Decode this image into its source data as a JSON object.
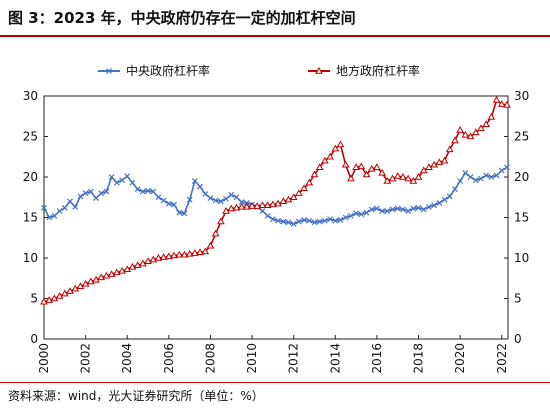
{
  "figure": {
    "title": "图 3：2023 年，中央政府仍存在一定的加杠杆空间",
    "source": "资料来源：wind，光大证券研究所（单位：%）"
  },
  "chart_data": {
    "type": "line",
    "title": "",
    "xlabel": "",
    "ylabel": "",
    "xlim": [
      2000,
      2022.3
    ],
    "ylim": [
      0,
      30
    ],
    "y_ticks": [
      0,
      5,
      10,
      15,
      20,
      25,
      30
    ],
    "y_ticks_right": [
      0,
      5,
      10,
      15,
      20,
      25,
      30
    ],
    "x_ticks": [
      "2000",
      "2002",
      "2004",
      "2006",
      "2008",
      "2010",
      "2012",
      "2014",
      "2016",
      "2018",
      "2020",
      "2022"
    ],
    "grid": false,
    "legend_position": "top",
    "series": [
      {
        "name": "中央政府杠杆率",
        "color": "#4472c4",
        "marker": "x",
        "x": [
          2000.0,
          2000.25,
          2000.5,
          2000.75,
          2001.0,
          2001.25,
          2001.5,
          2001.75,
          2002.0,
          2002.25,
          2002.5,
          2002.75,
          2003.0,
          2003.25,
          2003.5,
          2003.75,
          2004.0,
          2004.25,
          2004.5,
          2004.75,
          2005.0,
          2005.25,
          2005.5,
          2005.75,
          2006.0,
          2006.25,
          2006.5,
          2006.75,
          2007.0,
          2007.25,
          2007.5,
          2007.75,
          2008.0,
          2008.25,
          2008.5,
          2008.75,
          2009.0,
          2009.25,
          2009.5,
          2009.75,
          2010.0,
          2010.25,
          2010.5,
          2010.75,
          2011.0,
          2011.25,
          2011.5,
          2011.75,
          2012.0,
          2012.25,
          2012.5,
          2012.75,
          2013.0,
          2013.25,
          2013.5,
          2013.75,
          2014.0,
          2014.25,
          2014.5,
          2014.75,
          2015.0,
          2015.25,
          2015.5,
          2015.75,
          2016.0,
          2016.25,
          2016.5,
          2016.75,
          2017.0,
          2017.25,
          2017.5,
          2017.75,
          2018.0,
          2018.25,
          2018.5,
          2018.75,
          2019.0,
          2019.25,
          2019.5,
          2019.75,
          2020.0,
          2020.25,
          2020.5,
          2020.75,
          2021.0,
          2021.25,
          2021.5,
          2021.75,
          2022.0,
          2022.25
        ],
        "values": [
          16.2,
          15.0,
          15.2,
          15.8,
          16.2,
          17.0,
          16.3,
          17.6,
          18.0,
          18.2,
          17.4,
          18.0,
          18.2,
          20.0,
          19.3,
          19.6,
          20.1,
          19.3,
          18.5,
          18.2,
          18.3,
          18.2,
          17.5,
          17.1,
          16.7,
          16.6,
          15.6,
          15.5,
          17.2,
          19.5,
          18.8,
          17.9,
          17.4,
          17.1,
          17.0,
          17.3,
          17.8,
          17.5,
          16.9,
          16.8,
          16.6,
          16.3,
          15.8,
          15.2,
          14.8,
          14.6,
          14.5,
          14.4,
          14.2,
          14.5,
          14.7,
          14.6,
          14.4,
          14.5,
          14.6,
          14.8,
          14.6,
          14.7,
          15.0,
          15.2,
          15.5,
          15.4,
          15.6,
          16.0,
          16.1,
          15.8,
          15.8,
          16.0,
          16.1,
          16.0,
          15.8,
          16.1,
          16.2,
          16.0,
          16.3,
          16.5,
          16.8,
          17.2,
          17.6,
          18.5,
          19.5,
          20.5,
          20.0,
          19.6,
          19.8,
          20.2,
          20.0,
          20.2,
          20.8,
          21.2
        ]
      },
      {
        "name": "地方政府杠杆率",
        "color": "#c00000",
        "marker": "triangle",
        "x": [
          2000.0,
          2000.25,
          2000.5,
          2000.75,
          2001.0,
          2001.25,
          2001.5,
          2001.75,
          2002.0,
          2002.25,
          2002.5,
          2002.75,
          2003.0,
          2003.25,
          2003.5,
          2003.75,
          2004.0,
          2004.25,
          2004.5,
          2004.75,
          2005.0,
          2005.25,
          2005.5,
          2005.75,
          2006.0,
          2006.25,
          2006.5,
          2006.75,
          2007.0,
          2007.25,
          2007.5,
          2007.75,
          2008.0,
          2008.25,
          2008.5,
          2008.75,
          2009.0,
          2009.25,
          2009.5,
          2009.75,
          2010.0,
          2010.25,
          2010.5,
          2010.75,
          2011.0,
          2011.25,
          2011.5,
          2011.75,
          2012.0,
          2012.25,
          2012.5,
          2012.75,
          2013.0,
          2013.25,
          2013.5,
          2013.75,
          2014.0,
          2014.25,
          2014.5,
          2014.75,
          2015.0,
          2015.25,
          2015.5,
          2015.75,
          2016.0,
          2016.25,
          2016.5,
          2016.75,
          2017.0,
          2017.25,
          2017.5,
          2017.75,
          2018.0,
          2018.25,
          2018.5,
          2018.75,
          2019.0,
          2019.25,
          2019.5,
          2019.75,
          2020.0,
          2020.25,
          2020.5,
          2020.75,
          2021.0,
          2021.25,
          2021.5,
          2021.75,
          2022.0,
          2022.25
        ],
        "values": [
          4.6,
          4.8,
          5.0,
          5.3,
          5.6,
          5.9,
          6.2,
          6.5,
          6.8,
          7.1,
          7.3,
          7.6,
          7.8,
          8.0,
          8.2,
          8.4,
          8.6,
          8.9,
          9.1,
          9.3,
          9.6,
          9.8,
          10.0,
          10.1,
          10.2,
          10.3,
          10.4,
          10.4,
          10.5,
          10.6,
          10.7,
          10.8,
          11.5,
          13.0,
          14.5,
          15.8,
          16.1,
          16.2,
          16.3,
          16.3,
          16.4,
          16.4,
          16.5,
          16.5,
          16.6,
          16.7,
          17.0,
          17.2,
          17.5,
          18.0,
          18.6,
          19.3,
          20.3,
          21.2,
          22.0,
          22.5,
          23.5,
          24.0,
          21.5,
          19.8,
          21.2,
          21.3,
          20.3,
          21.0,
          21.2,
          20.5,
          19.5,
          19.8,
          20.1,
          20.0,
          19.8,
          19.5,
          20.0,
          20.8,
          21.2,
          21.5,
          21.8,
          22.0,
          23.4,
          24.5,
          25.8,
          25.2,
          25.0,
          25.5,
          26.0,
          26.5,
          27.4,
          29.5,
          29.0,
          28.9
        ]
      }
    ]
  }
}
